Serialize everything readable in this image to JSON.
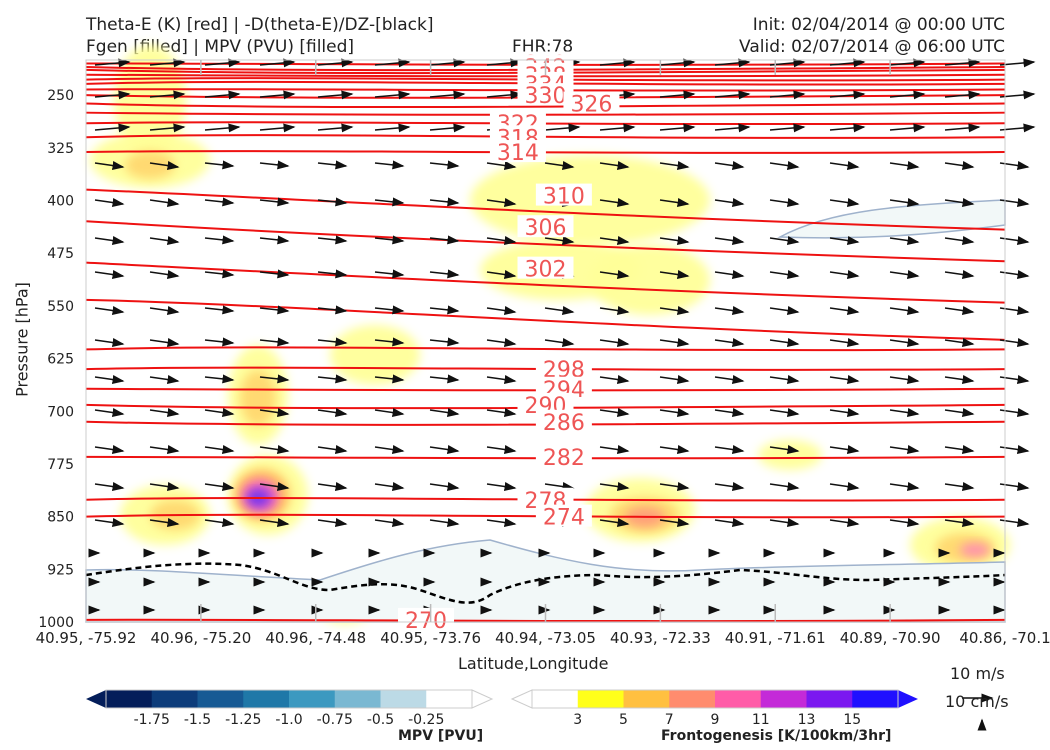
{
  "header": {
    "title_line1": "Theta-E (K) [red] | -D(theta-E)/DZ-[black]",
    "title_line2": "Fgen [filled] | MPV (PVU) [filled]",
    "fhr": "FHR:78",
    "init": "Init: 02/04/2014 @ 00:00 UTC",
    "valid": "Valid: 02/07/2014 @ 06:00 UTC"
  },
  "chart_data": {
    "type": "cross-section",
    "xlabel": "Latitude,Longitude",
    "ylabel": "Pressure [hPa]",
    "x_ticks": [
      "40.95, -75.92",
      "40.96, -75.20",
      "40.96, -74.48",
      "40.95, -73.76",
      "40.94, -73.05",
      "40.93, -72.33",
      "40.91, -71.61",
      "40.89, -70.90",
      "40.86, -70.1"
    ],
    "y_ticks": [
      250,
      325,
      400,
      475,
      550,
      625,
      700,
      775,
      850,
      925,
      1000
    ],
    "ylim": [
      200,
      1000
    ],
    "theta_e_color": "#ee1111",
    "theta_e_labels": [
      {
        "value": "348",
        "x": 0.5,
        "p": 205
      },
      {
        "value": "342",
        "x": 0.5,
        "p": 210
      },
      {
        "value": "338",
        "x": 0.5,
        "p": 221
      },
      {
        "value": "334",
        "x": 0.5,
        "p": 234
      },
      {
        "value": "330",
        "x": 0.5,
        "p": 250
      },
      {
        "value": "326",
        "x": 0.55,
        "p": 262
      },
      {
        "value": "322",
        "x": 0.47,
        "p": 290
      },
      {
        "value": "318",
        "x": 0.47,
        "p": 310
      },
      {
        "value": "314",
        "x": 0.47,
        "p": 331
      },
      {
        "value": "310",
        "x": 0.52,
        "p": 393
      },
      {
        "value": "306",
        "x": 0.5,
        "p": 438
      },
      {
        "value": "302",
        "x": 0.5,
        "p": 497
      },
      {
        "value": "298",
        "x": 0.52,
        "p": 640
      },
      {
        "value": "294",
        "x": 0.52,
        "p": 668
      },
      {
        "value": "290",
        "x": 0.5,
        "p": 691
      },
      {
        "value": "286",
        "x": 0.52,
        "p": 715
      },
      {
        "value": "282",
        "x": 0.52,
        "p": 765
      },
      {
        "value": "278",
        "x": 0.5,
        "p": 826
      },
      {
        "value": "274",
        "x": 0.52,
        "p": 850
      },
      {
        "value": "270",
        "x": 0.37,
        "p": 997
      }
    ],
    "mpv_colorbar": {
      "label": "MPV [PVU]",
      "ticks": [
        "-1.75",
        "-1.5",
        "-1.25",
        "-1.0",
        "-0.75",
        "-0.5",
        "-0.25"
      ],
      "colors": [
        "#041e5a",
        "#0d3c7a",
        "#175a94",
        "#1f78a8",
        "#3c99c0",
        "#7ab8d2",
        "#bcdae6",
        "#ffffff"
      ]
    },
    "fgen_colorbar": {
      "label": "Frontogenesis [K/100km/3hr]",
      "ticks": [
        "3",
        "5",
        "7",
        "9",
        "11",
        "13",
        "15"
      ],
      "colors": [
        "#ffffff",
        "#ffff1a",
        "#ffc040",
        "#ff8c6e",
        "#ff5ca8",
        "#c42ad8",
        "#7b18f0",
        "#2010ff"
      ]
    },
    "wind_scale": {
      "horizontal": "10 m/s",
      "vertical": "10 cm/s"
    }
  }
}
